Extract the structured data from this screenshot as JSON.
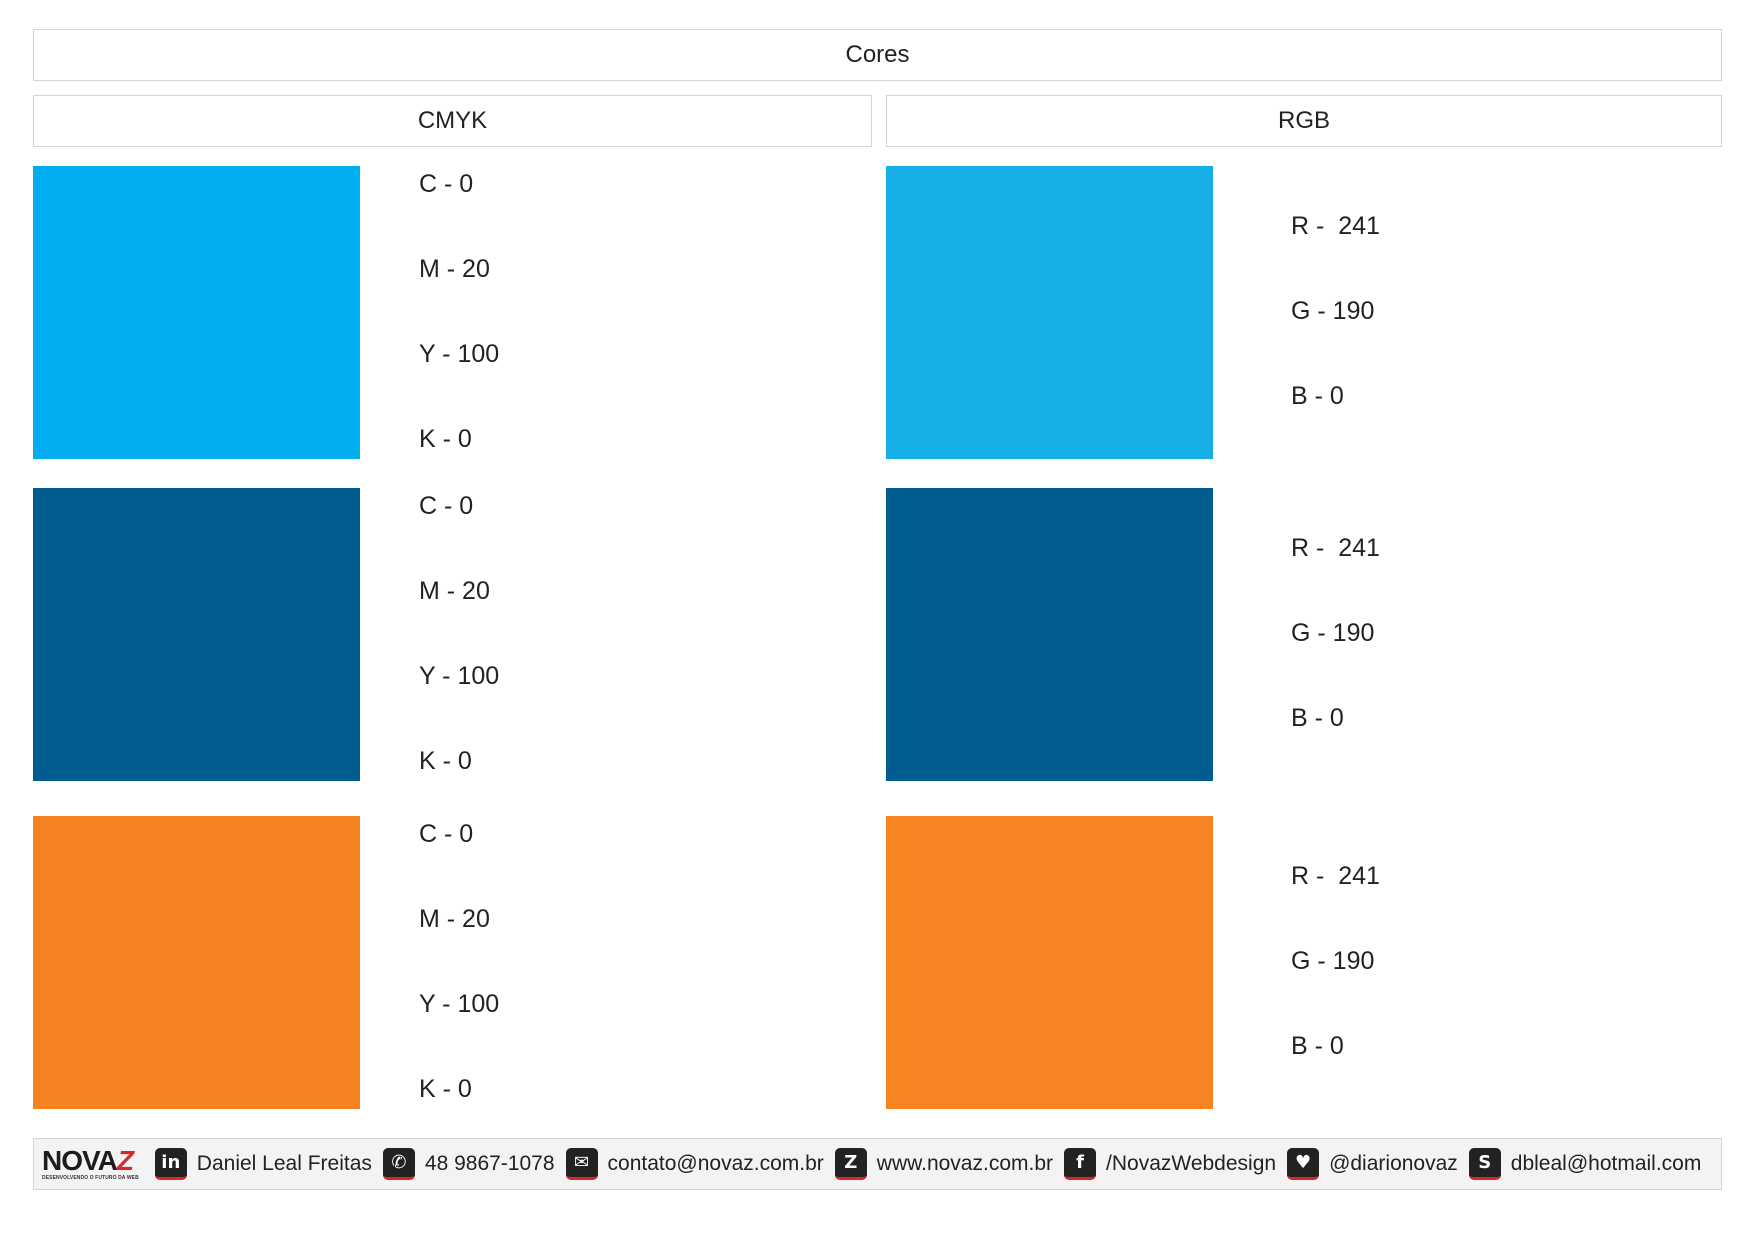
{
  "title": "Cores",
  "headers": {
    "cmyk": "CMYK",
    "rgb": "RGB"
  },
  "colors": [
    {
      "swatch_cmyk_color": "#00aeef",
      "swatch_rgb_color": "#16b0e6",
      "cmyk": [
        "C - 0",
        "M - 20",
        "Y - 100",
        "K - 0"
      ],
      "rgb": [
        "R -  241",
        "G - 190",
        "B - 0"
      ]
    },
    {
      "swatch_cmyk_color": "#015c8f",
      "swatch_rgb_color": "#015c8f",
      "cmyk": [
        "C - 0",
        "M - 20",
        "Y - 100",
        "K - 0"
      ],
      "rgb": [
        "R -  241",
        "G - 190",
        "B - 0"
      ]
    },
    {
      "swatch_cmyk_color": "#f58220",
      "swatch_rgb_color": "#f78421",
      "cmyk": [
        "C - 0",
        "M - 20",
        "Y - 100",
        "K - 0"
      ],
      "rgb": [
        "R -  241",
        "G - 190",
        "B - 0"
      ]
    }
  ],
  "footer": {
    "logo_text_main": "NOVA",
    "logo_text_z": "Z",
    "logo_tagline": "DESENVOLVENDO O FUTURO DA WEB",
    "contacts": [
      {
        "icon": "linkedin-icon",
        "glyph": "in",
        "text": "Daniel Leal Freitas"
      },
      {
        "icon": "whatsapp-icon",
        "glyph": "✆",
        "text": "48 9867-1078"
      },
      {
        "icon": "email-icon",
        "glyph": "✉",
        "text": "contato@novaz.com.br"
      },
      {
        "icon": "website-icon",
        "glyph": "Z",
        "text": "www.novaz.com.br"
      },
      {
        "icon": "facebook-icon",
        "glyph": "f",
        "text": "/NovazWebdesign"
      },
      {
        "icon": "twitter-icon",
        "glyph": "♥",
        "text": "@diarionovaz"
      },
      {
        "icon": "skype-icon",
        "glyph": "S",
        "text": "dbleal@hotmail.com"
      }
    ]
  }
}
